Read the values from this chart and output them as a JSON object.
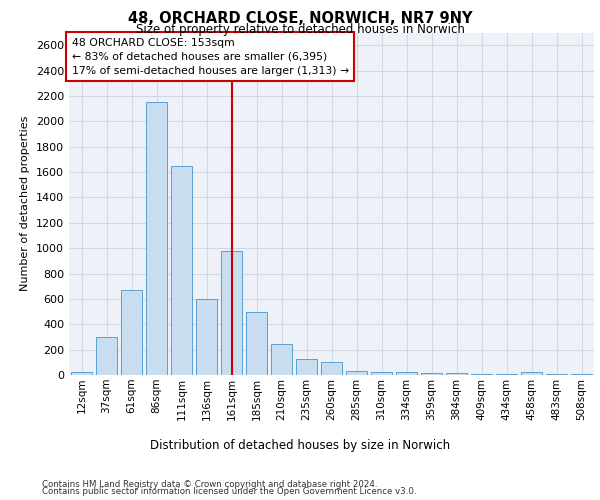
{
  "title_line1": "48, ORCHARD CLOSE, NORWICH, NR7 9NY",
  "title_line2": "Size of property relative to detached houses in Norwich",
  "xlabel": "Distribution of detached houses by size in Norwich",
  "ylabel": "Number of detached properties",
  "categories": [
    "12sqm",
    "37sqm",
    "61sqm",
    "86sqm",
    "111sqm",
    "136sqm",
    "161sqm",
    "185sqm",
    "210sqm",
    "235sqm",
    "260sqm",
    "285sqm",
    "310sqm",
    "334sqm",
    "359sqm",
    "384sqm",
    "409sqm",
    "434sqm",
    "458sqm",
    "483sqm",
    "508sqm"
  ],
  "values": [
    20,
    300,
    670,
    2150,
    1650,
    600,
    980,
    500,
    245,
    125,
    100,
    35,
    25,
    20,
    15,
    15,
    10,
    10,
    20,
    5,
    5
  ],
  "bar_color": "#c9ddf0",
  "bar_edge_color": "#5a9fd4",
  "vline_x_index": 6,
  "vline_color": "#cc0000",
  "annotation_text": "48 ORCHARD CLOSE: 153sqm\n← 83% of detached houses are smaller (6,395)\n17% of semi-detached houses are larger (1,313) →",
  "annotation_box_color": "#ffffff",
  "annotation_box_edge": "#cc0000",
  "grid_color": "#d0d8e8",
  "background_color": "#eef2f8",
  "ylim": [
    0,
    2700
  ],
  "yticks": [
    0,
    200,
    400,
    600,
    800,
    1000,
    1200,
    1400,
    1600,
    1800,
    2000,
    2200,
    2400,
    2600
  ],
  "footer_line1": "Contains HM Land Registry data © Crown copyright and database right 2024.",
  "footer_line2": "Contains public sector information licensed under the Open Government Licence v3.0."
}
